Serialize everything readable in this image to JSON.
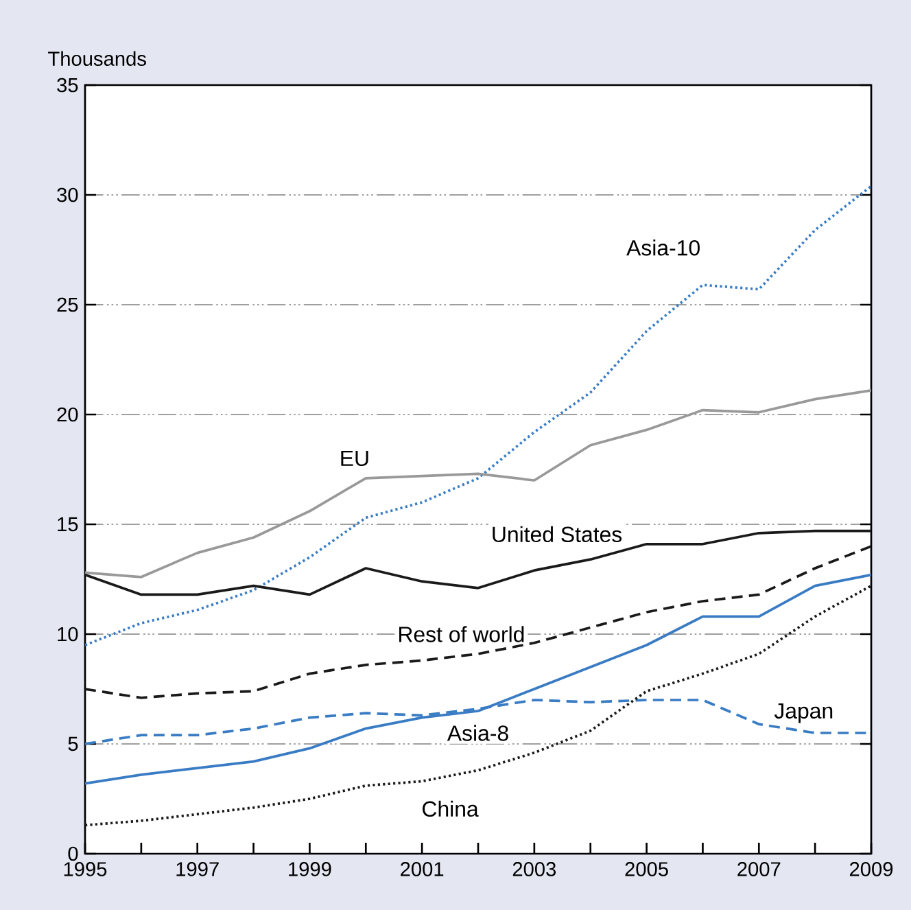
{
  "chart_data": {
    "type": "line",
    "ylabel": "Thousands",
    "x": [
      1995,
      1996,
      1997,
      1998,
      1999,
      2000,
      2001,
      2002,
      2003,
      2004,
      2005,
      2006,
      2007,
      2008,
      2009
    ],
    "xlim": [
      1995,
      2009
    ],
    "ylim": [
      0,
      35
    ],
    "xticks": [
      1995,
      {
        "value": 1996,
        "label": null
      },
      1997,
      {
        "value": 1998,
        "label": null
      },
      1999,
      {
        "value": 2000,
        "label": null
      },
      2001,
      {
        "value": 2002,
        "label": null
      },
      2003,
      {
        "value": 2004,
        "label": null
      },
      2005,
      {
        "value": 2006,
        "label": null
      },
      2007,
      {
        "value": 2008,
        "label": null
      },
      2009
    ],
    "yticks": [
      0,
      5,
      10,
      15,
      20,
      25,
      30,
      35
    ],
    "grid": "y",
    "marker": "none",
    "series": [
      {
        "name": "Asia-10",
        "color": "#3a7cc4",
        "line_style": "dotted",
        "values": [
          9.5,
          10.5,
          11.1,
          12.0,
          13.5,
          15.3,
          16.0,
          17.1,
          19.2,
          21.0,
          23.8,
          25.9,
          25.7,
          28.4,
          30.4
        ]
      },
      {
        "name": "EU",
        "color": "#999999",
        "line_style": "solid",
        "values": [
          12.8,
          12.6,
          13.7,
          14.4,
          15.6,
          17.1,
          17.2,
          17.3,
          17.0,
          18.6,
          19.3,
          20.2,
          20.1,
          20.7,
          21.1
        ]
      },
      {
        "name": "United States",
        "color": "#1a1a1a",
        "line_style": "solid",
        "values": [
          12.7,
          11.8,
          11.8,
          12.2,
          11.8,
          13.0,
          12.4,
          12.1,
          12.9,
          13.4,
          14.1,
          14.1,
          14.6,
          14.7,
          14.7
        ]
      },
      {
        "name": "Rest of world",
        "color": "#1a1a1a",
        "line_style": "dashed",
        "values": [
          7.5,
          7.1,
          7.3,
          7.4,
          8.2,
          8.6,
          8.8,
          9.1,
          9.6,
          10.3,
          11.0,
          11.5,
          11.8,
          13.0,
          14.0
        ]
      },
      {
        "name": "Japan",
        "color": "#3a7cc4",
        "line_style": "dashed",
        "values": [
          5.0,
          5.4,
          5.4,
          5.7,
          6.2,
          6.4,
          6.3,
          6.6,
          7.0,
          6.9,
          7.0,
          7.0,
          5.9,
          5.5,
          5.5
        ]
      },
      {
        "name": "Asia-8",
        "color": "#3a7cc4",
        "line_style": "solid",
        "values": [
          3.2,
          3.6,
          3.9,
          4.2,
          4.8,
          5.7,
          6.2,
          6.5,
          7.5,
          8.5,
          9.5,
          10.8,
          10.8,
          12.2,
          12.7
        ]
      },
      {
        "name": "China",
        "color": "#1a1a1a",
        "line_style": "dotted",
        "values": [
          1.3,
          1.5,
          1.8,
          2.1,
          2.5,
          3.1,
          3.3,
          3.8,
          4.6,
          5.6,
          7.4,
          8.2,
          9.1,
          10.8,
          12.2
        ]
      }
    ]
  }
}
